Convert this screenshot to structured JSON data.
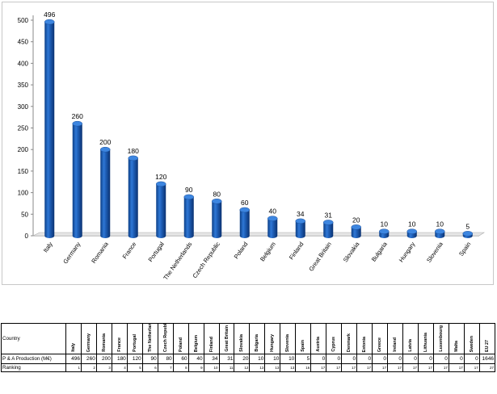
{
  "chart_data": {
    "type": "bar",
    "categories": [
      "Italy",
      "Germany",
      "Romania",
      "France",
      "Portugal",
      "The Netherlands",
      "Czech Republic",
      "Poland",
      "Belgium",
      "Finland",
      "Great Britain",
      "Slovakia",
      "Bulgaria",
      "Hungary",
      "Slovenia",
      "Spain"
    ],
    "values": [
      496,
      260,
      200,
      180,
      120,
      90,
      80,
      60,
      40,
      34,
      31,
      20,
      10,
      10,
      10,
      5
    ],
    "data_labels": [
      "496",
      "260",
      "200",
      "180",
      "120",
      "90",
      "80",
      "60",
      "40",
      "34",
      "31",
      "20",
      "10",
      "10",
      "10",
      "5"
    ],
    "yticks": [
      "0",
      "50",
      "100",
      "150",
      "200",
      "250",
      "300",
      "350",
      "400",
      "450",
      "500"
    ],
    "ylim": [
      0,
      500
    ],
    "title": "",
    "xlabel": "",
    "ylabel": "",
    "grid": false,
    "legend": "none",
    "bar_style": "3d-cylinder",
    "bar_color": "#1f5fb8"
  },
  "table": {
    "header_label": "Country",
    "columns": [
      "Italy",
      "Germany",
      "Romania",
      "France",
      "Portugal",
      "The Netherlands",
      "Czech Republic",
      "Poland",
      "Belgium",
      "Finland",
      "Great Britain",
      "Slovakia",
      "Bulgaria",
      "Hungary",
      "Slovenia",
      "Spain",
      "Austria",
      "Cyprus",
      "Denmark",
      "Estonia",
      "Greece",
      "Ireland",
      "Latvia",
      "Lithuania",
      "Luxembourg",
      "Malta",
      "Sweden",
      "EU 27"
    ],
    "rows": [
      {
        "label": "P & A Production (M€)",
        "values": [
          "496",
          "260",
          "200",
          "180",
          "120",
          "90",
          "80",
          "60",
          "40",
          "34",
          "31",
          "20",
          "10",
          "10",
          "10",
          "5",
          "0",
          "0",
          "0",
          "0",
          "0",
          "0",
          "0",
          "0",
          "0",
          "0",
          "0",
          "1646"
        ]
      },
      {
        "label": "Ranking",
        "values": [
          "1",
          "2",
          "3",
          "4",
          "5",
          "6",
          "7",
          "8",
          "9",
          "10",
          "11",
          "12",
          "13",
          "13",
          "13",
          "16",
          "17",
          "17",
          "17",
          "17",
          "17",
          "17",
          "17",
          "17",
          "17",
          "17",
          "17",
          "27"
        ]
      }
    ]
  }
}
